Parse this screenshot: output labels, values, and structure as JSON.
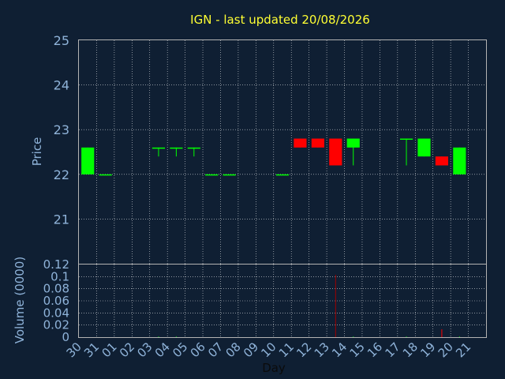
{
  "chart_data": {
    "type": "candlestick",
    "title": "IGN - last updated 20/08/2026",
    "xlabel": "Day",
    "price_panel": {
      "ylabel": "Price",
      "ylim": [
        20.0,
        25.0
      ],
      "yticks": [
        "21",
        "22",
        "23",
        "24",
        "25"
      ]
    },
    "volume_panel": {
      "ylabel": "Volume (0000)",
      "ylim": [
        0,
        0.12
      ],
      "yticks": [
        "0",
        "0.02",
        "0.04",
        "0.06",
        "0.08",
        "0.1",
        "0.12"
      ]
    },
    "days": [
      "30",
      "31",
      "01",
      "02",
      "03",
      "04",
      "05",
      "06",
      "07",
      "08",
      "09",
      "10",
      "11",
      "12",
      "13",
      "14",
      "15",
      "16",
      "17",
      "18",
      "19",
      "20",
      "21"
    ],
    "candles": [
      {
        "day": "30",
        "open": 22.0,
        "high": 22.6,
        "low": 22.0,
        "close": 22.6,
        "volume": 0.0
      },
      {
        "day": "31",
        "open": 22.0,
        "high": 22.0,
        "low": 22.0,
        "close": 22.0,
        "volume": 0.0
      },
      {
        "day": "03",
        "open": 22.6,
        "high": 22.6,
        "low": 22.4,
        "close": 22.6,
        "volume": 0.001
      },
      {
        "day": "04",
        "open": 22.6,
        "high": 22.6,
        "low": 22.4,
        "close": 22.6,
        "volume": 0.001
      },
      {
        "day": "05",
        "open": 22.6,
        "high": 22.6,
        "low": 22.4,
        "close": 22.6,
        "volume": 0.0
      },
      {
        "day": "06",
        "open": 22.0,
        "high": 22.0,
        "low": 22.0,
        "close": 22.0,
        "volume": 0.0
      },
      {
        "day": "07",
        "open": 22.0,
        "high": 22.0,
        "low": 22.0,
        "close": 22.0,
        "volume": 0.0
      },
      {
        "day": "10",
        "open": 22.0,
        "high": 22.0,
        "low": 22.0,
        "close": 22.0,
        "volume": 0.0
      },
      {
        "day": "11",
        "open": 22.8,
        "high": 22.8,
        "low": 22.6,
        "close": 22.6,
        "volume": 0.0
      },
      {
        "day": "12",
        "open": 22.8,
        "high": 22.8,
        "low": 22.6,
        "close": 22.6,
        "volume": 0.0
      },
      {
        "day": "13",
        "open": 22.8,
        "high": 22.8,
        "low": 22.2,
        "close": 22.2,
        "volume": 0.103
      },
      {
        "day": "14",
        "open": 22.6,
        "high": 22.8,
        "low": 22.2,
        "close": 22.8,
        "volume": 0.001
      },
      {
        "day": "17",
        "open": 22.8,
        "high": 22.8,
        "low": 22.2,
        "close": 22.8,
        "volume": 0.001
      },
      {
        "day": "18",
        "open": 22.4,
        "high": 22.8,
        "low": 22.4,
        "close": 22.8,
        "volume": 0.0
      },
      {
        "day": "19",
        "open": 22.4,
        "high": 22.4,
        "low": 22.2,
        "close": 22.2,
        "volume": 0.013
      },
      {
        "day": "20",
        "open": 22.0,
        "high": 22.6,
        "low": 22.0,
        "close": 22.6,
        "volume": 0.001
      }
    ],
    "colors": {
      "background": "#0f1f33",
      "axis_text": "#8fb3d9",
      "title": "#ffff33",
      "up": "#00ff00",
      "down": "#ff0000",
      "grid": "#ffffff",
      "frame": "#b3b3b3",
      "volume_spike": "#a00000"
    },
    "grid": true
  }
}
